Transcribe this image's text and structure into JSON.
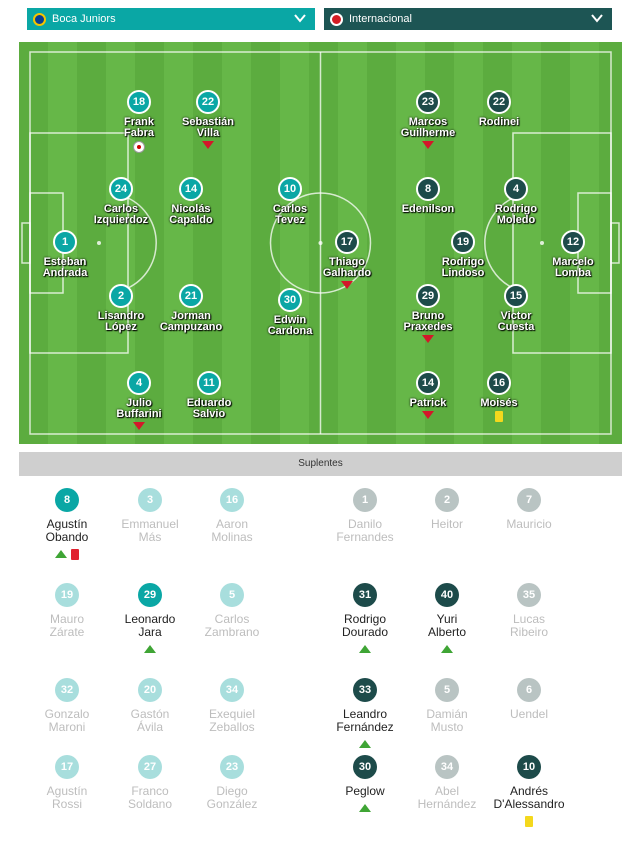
{
  "home_team": {
    "name": "Boca Juniors",
    "logo_icon": "boca-crest-icon",
    "color": "#0aa7a5"
  },
  "away_team": {
    "name": "Internacional",
    "logo_icon": "internacional-crest-icon",
    "color": "#1d5554"
  },
  "lineup": {
    "home": [
      {
        "num": "1",
        "name": [
          "Esteban",
          "Andrada"
        ],
        "events": []
      },
      {
        "num": "24",
        "name": [
          "Carlos",
          "Izquierdoz"
        ],
        "events": []
      },
      {
        "num": "2",
        "name": [
          "Lisandro",
          "López"
        ],
        "events": []
      },
      {
        "num": "18",
        "name": [
          "Frank",
          "Fabra"
        ],
        "events": [
          "goal"
        ]
      },
      {
        "num": "4",
        "name": [
          "Julio",
          "Buffarini"
        ],
        "events": [
          "sub-off"
        ]
      },
      {
        "num": "22",
        "name": [
          "Sebastián",
          "Villa"
        ],
        "events": [
          "sub-off"
        ]
      },
      {
        "num": "14",
        "name": [
          "Nicolás",
          "Capaldo"
        ],
        "events": []
      },
      {
        "num": "21",
        "name": [
          "Jorman",
          "Campuzano"
        ],
        "events": []
      },
      {
        "num": "11",
        "name": [
          "Eduardo",
          "Salvio"
        ],
        "events": []
      },
      {
        "num": "10",
        "name": [
          "Carlos",
          "Tevez"
        ],
        "events": []
      },
      {
        "num": "30",
        "name": [
          "Edwin",
          "Cardona"
        ],
        "events": []
      }
    ],
    "away": [
      {
        "num": "23",
        "name": [
          "Marcos",
          "Guilherme"
        ],
        "events": [
          "sub-off"
        ]
      },
      {
        "num": "22",
        "name": [
          "Rodinei"
        ],
        "events": []
      },
      {
        "num": "8",
        "name": [
          "Edenilson"
        ],
        "events": []
      },
      {
        "num": "4",
        "name": [
          "Rodrigo",
          "Moledo"
        ],
        "events": []
      },
      {
        "num": "17",
        "name": [
          "Thiago",
          "Galhardo"
        ],
        "events": [
          "sub-off"
        ]
      },
      {
        "num": "19",
        "name": [
          "Rodrigo",
          "Lindoso"
        ],
        "events": []
      },
      {
        "num": "12",
        "name": [
          "Marcelo",
          "Lomba"
        ],
        "events": []
      },
      {
        "num": "29",
        "name": [
          "Bruno",
          "Praxedes"
        ],
        "events": [
          "sub-off"
        ]
      },
      {
        "num": "15",
        "name": [
          "Victor",
          "Cuesta"
        ],
        "events": []
      },
      {
        "num": "14",
        "name": [
          "Patrick"
        ],
        "events": [
          "sub-off"
        ]
      },
      {
        "num": "16",
        "name": [
          "Moisés"
        ],
        "events": [
          "yellow"
        ]
      }
    ]
  },
  "subs_header": "Suplentes",
  "subs": {
    "home": [
      {
        "num": "8",
        "name": [
          "Agustín",
          "Obando"
        ],
        "played": true,
        "events": [
          "sub-on",
          "red"
        ]
      },
      {
        "num": "3",
        "name": [
          "Emmanuel",
          "Más"
        ],
        "played": false,
        "events": []
      },
      {
        "num": "16",
        "name": [
          "Aaron",
          "Molinas"
        ],
        "played": false,
        "events": []
      },
      {
        "num": "19",
        "name": [
          "Mauro",
          "Zárate"
        ],
        "played": false,
        "events": []
      },
      {
        "num": "29",
        "name": [
          "Leonardo",
          "Jara"
        ],
        "played": true,
        "events": [
          "sub-on"
        ]
      },
      {
        "num": "5",
        "name": [
          "Carlos",
          "Zambrano"
        ],
        "played": false,
        "events": []
      },
      {
        "num": "32",
        "name": [
          "Gonzalo",
          "Maroni"
        ],
        "played": false,
        "events": []
      },
      {
        "num": "20",
        "name": [
          "Gastón",
          "Ávila"
        ],
        "played": false,
        "events": []
      },
      {
        "num": "34",
        "name": [
          "Exequiel",
          "Zeballos"
        ],
        "played": false,
        "events": []
      },
      {
        "num": "17",
        "name": [
          "Agustín",
          "Rossi"
        ],
        "played": false,
        "events": []
      },
      {
        "num": "27",
        "name": [
          "Franco",
          "Soldano"
        ],
        "played": false,
        "events": []
      },
      {
        "num": "23",
        "name": [
          "Diego",
          "González"
        ],
        "played": false,
        "events": []
      }
    ],
    "away": [
      {
        "num": "1",
        "name": [
          "Danilo",
          "Fernandes"
        ],
        "played": false,
        "events": []
      },
      {
        "num": "2",
        "name": [
          "Heitor"
        ],
        "played": false,
        "events": []
      },
      {
        "num": "7",
        "name": [
          "Mauricio"
        ],
        "played": false,
        "events": []
      },
      {
        "num": "31",
        "name": [
          "Rodrigo",
          "Dourado"
        ],
        "played": true,
        "events": [
          "sub-on"
        ]
      },
      {
        "num": "40",
        "name": [
          "Yuri",
          "Alberto"
        ],
        "played": true,
        "events": [
          "sub-on"
        ]
      },
      {
        "num": "35",
        "name": [
          "Lucas",
          "Ribeiro"
        ],
        "played": false,
        "events": []
      },
      {
        "num": "33",
        "name": [
          "Leandro",
          "Fernández"
        ],
        "played": true,
        "events": [
          "sub-on"
        ]
      },
      {
        "num": "5",
        "name": [
          "Damián",
          "Musto"
        ],
        "played": false,
        "events": []
      },
      {
        "num": "6",
        "name": [
          "Uendel"
        ],
        "played": false,
        "events": []
      },
      {
        "num": "30",
        "name": [
          "Peglow"
        ],
        "played": true,
        "events": [
          "sub-on"
        ]
      },
      {
        "num": "34",
        "name": [
          "Abel",
          "Hernández"
        ],
        "played": false,
        "events": []
      },
      {
        "num": "10",
        "name": [
          "Andrés",
          "D'Alessandro"
        ],
        "played": true,
        "events": [
          "yellow"
        ]
      }
    ]
  }
}
